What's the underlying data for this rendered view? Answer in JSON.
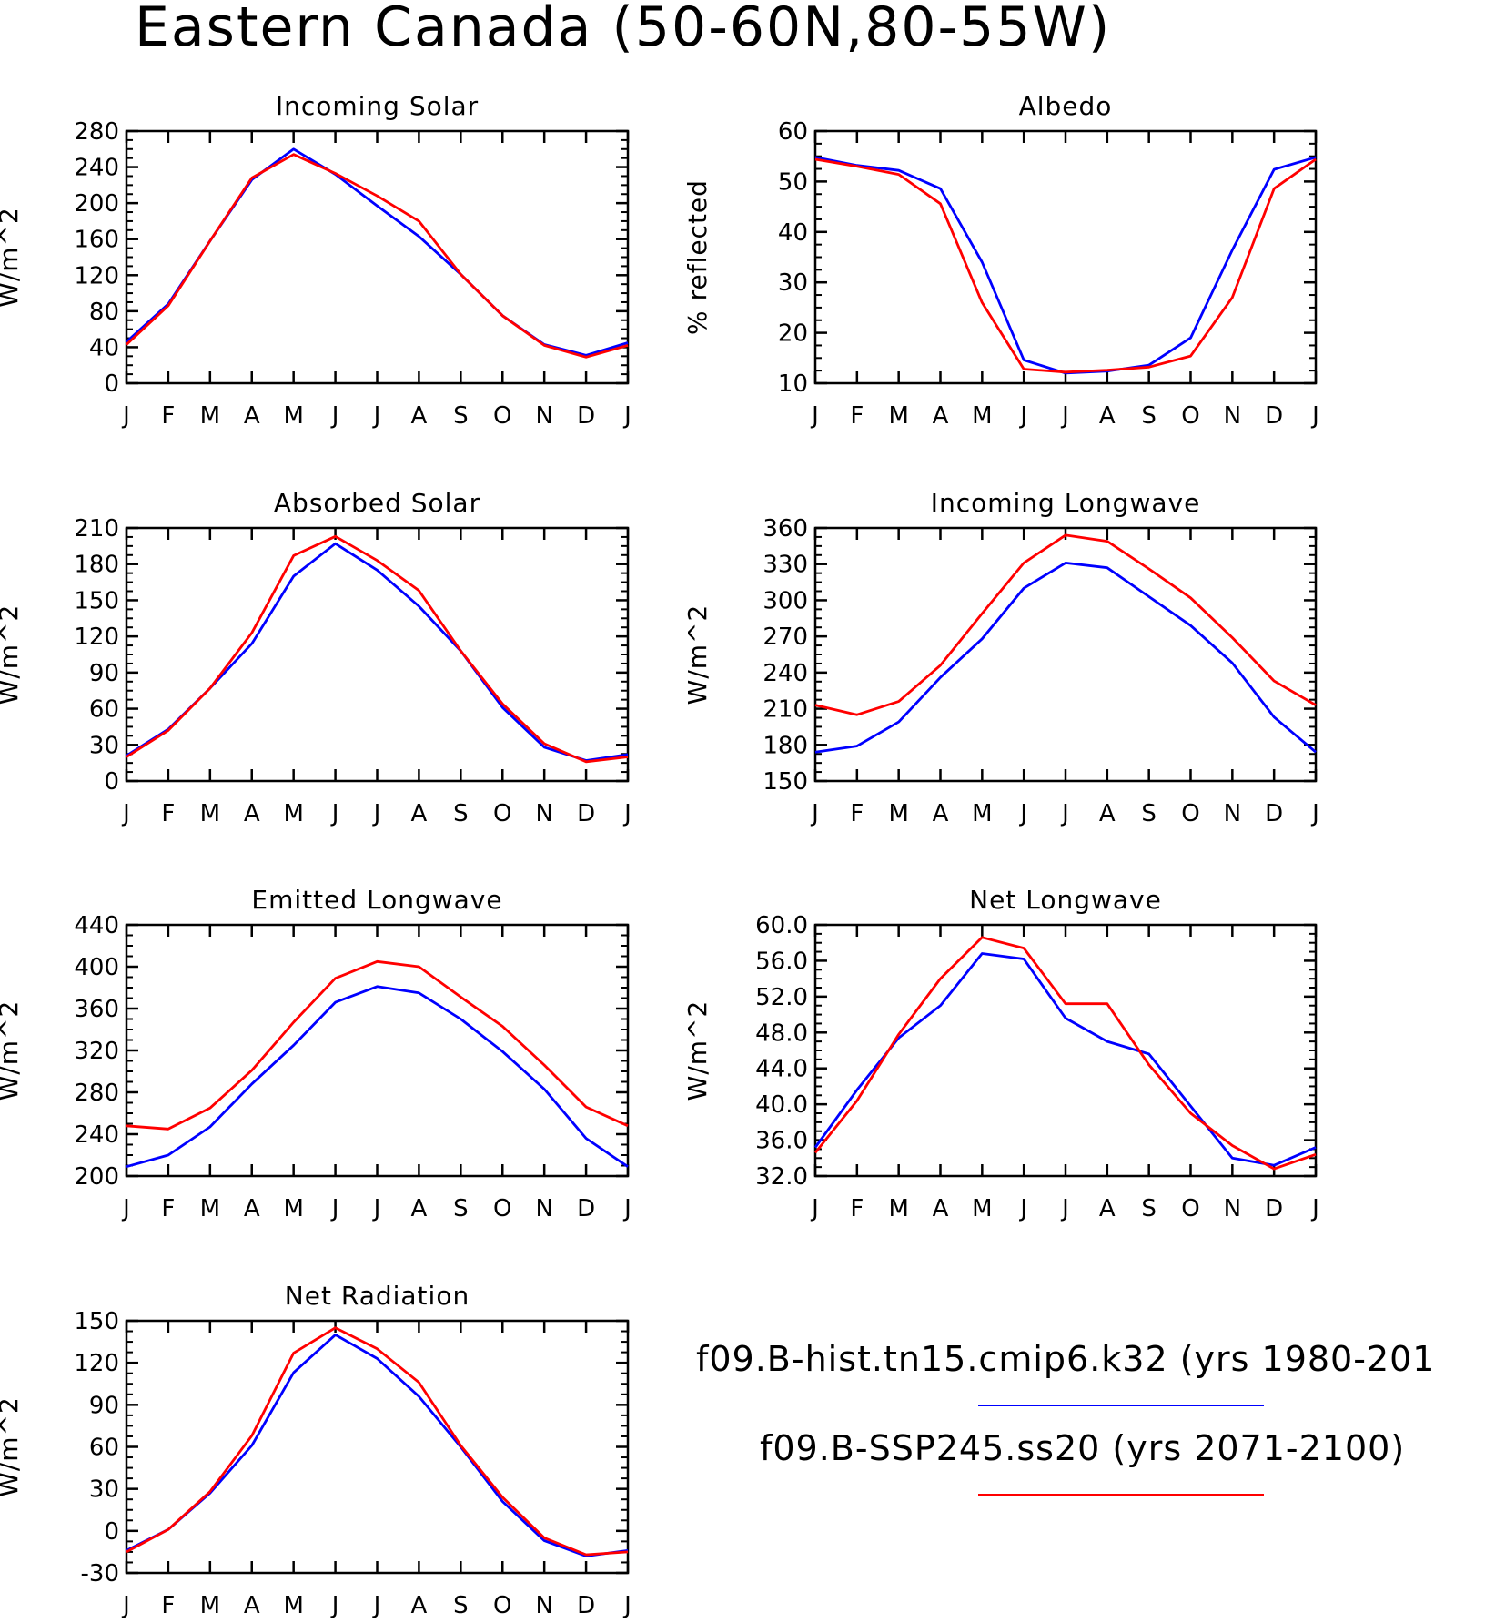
{
  "title": "Eastern Canada (50-60N,80-55W)",
  "month_labels": [
    "J",
    "F",
    "M",
    "A",
    "M",
    "J",
    "J",
    "A",
    "S",
    "O",
    "N",
    "D",
    "J"
  ],
  "colors": {
    "hist": "#0000ff",
    "ssp": "#ff0000",
    "axis": "#000000"
  },
  "legend": [
    {
      "text": "f09.B-hist.tn15.cmip6.k32 (yrs 1980-201",
      "color": "#0000ff"
    },
    {
      "text": "f09.B-SSP245.ss20 (yrs 2071-2100)",
      "color": "#ff0000"
    }
  ],
  "chart_data": [
    {
      "type": "line",
      "title": "Incoming Solar",
      "ylabel": "W/m^2",
      "xlabel": "",
      "categories": [
        "J",
        "F",
        "M",
        "A",
        "M",
        "J",
        "J",
        "A",
        "S",
        "O",
        "N",
        "D",
        "J"
      ],
      "ylim": [
        0,
        280
      ],
      "yticks": [
        "0",
        "40",
        "80",
        "120",
        "160",
        "200",
        "240",
        "280"
      ],
      "series": [
        {
          "name": "f09.B-hist.tn15.cmip6.k32 (yrs 1980-201",
          "color": "#0000ff",
          "values": [
            46,
            88,
            158,
            226,
            260,
            232,
            197,
            163,
            121,
            75,
            43,
            31,
            45
          ]
        },
        {
          "name": "f09.B-SSP245.ss20 (yrs 2071-2100)",
          "color": "#ff0000",
          "values": [
            43,
            86,
            158,
            228,
            254,
            233,
            208,
            180,
            121,
            75,
            42,
            29,
            42
          ]
        }
      ]
    },
    {
      "type": "line",
      "title": "Albedo",
      "ylabel": "% reflected",
      "xlabel": "",
      "categories": [
        "J",
        "F",
        "M",
        "A",
        "M",
        "J",
        "J",
        "A",
        "S",
        "O",
        "N",
        "D",
        "J"
      ],
      "ylim": [
        10,
        60
      ],
      "yticks": [
        "10",
        "20",
        "30",
        "40",
        "50",
        "60"
      ],
      "series": [
        {
          "name": "f09.B-hist.tn15.cmip6.k32 (yrs 1980-201",
          "color": "#0000ff",
          "values": [
            54.8,
            53.2,
            52.2,
            48.6,
            34.0,
            14.6,
            12.0,
            12.4,
            13.6,
            19.0,
            36.4,
            52.4,
            54.8
          ]
        },
        {
          "name": "f09.B-SSP245.ss20 (yrs 2071-2100)",
          "color": "#ff0000",
          "values": [
            54.4,
            53.0,
            51.4,
            45.6,
            26.0,
            12.8,
            12.2,
            12.6,
            13.2,
            15.4,
            27.0,
            48.6,
            54.4
          ]
        }
      ]
    },
    {
      "type": "line",
      "title": "Absorbed Solar",
      "ylabel": "W/m^2",
      "xlabel": "",
      "categories": [
        "J",
        "F",
        "M",
        "A",
        "M",
        "J",
        "J",
        "A",
        "S",
        "O",
        "N",
        "D",
        "J"
      ],
      "ylim": [
        0,
        210
      ],
      "yticks": [
        "0",
        "30",
        "60",
        "90",
        "120",
        "150",
        "180",
        "210"
      ],
      "series": [
        {
          "name": "f09.B-hist.tn15.cmip6.k32 (yrs 1980-201",
          "color": "#0000ff",
          "values": [
            21,
            43,
            77,
            114,
            170,
            197,
            175,
            145,
            108,
            61,
            28,
            17,
            22
          ]
        },
        {
          "name": "f09.B-SSP245.ss20 (yrs 2071-2100)",
          "color": "#ff0000",
          "values": [
            20,
            42,
            77,
            123,
            187,
            203,
            183,
            158,
            108,
            64,
            31,
            16,
            20
          ]
        }
      ]
    },
    {
      "type": "line",
      "title": "Incoming Longwave",
      "ylabel": "W/m^2",
      "xlabel": "",
      "categories": [
        "J",
        "F",
        "M",
        "A",
        "M",
        "J",
        "J",
        "A",
        "S",
        "O",
        "N",
        "D",
        "J"
      ],
      "ylim": [
        150,
        360
      ],
      "yticks": [
        "150",
        "180",
        "210",
        "240",
        "270",
        "300",
        "330",
        "360"
      ],
      "series": [
        {
          "name": "f09.B-hist.tn15.cmip6.k32 (yrs 1980-201",
          "color": "#0000ff",
          "values": [
            174,
            179,
            199,
            236,
            268,
            310,
            331,
            327,
            303,
            279,
            248,
            203,
            174
          ]
        },
        {
          "name": "f09.B-SSP245.ss20 (yrs 2071-2100)",
          "color": "#ff0000",
          "values": [
            213,
            205,
            216,
            246,
            289,
            331,
            354,
            349,
            326,
            302,
            269,
            233,
            213
          ]
        }
      ]
    },
    {
      "type": "line",
      "title": "Emitted Longwave",
      "ylabel": "W/m^2",
      "xlabel": "",
      "categories": [
        "J",
        "F",
        "M",
        "A",
        "M",
        "J",
        "J",
        "A",
        "S",
        "O",
        "N",
        "D",
        "J"
      ],
      "ylim": [
        200,
        440
      ],
      "yticks": [
        "200",
        "240",
        "280",
        "320",
        "360",
        "400",
        "440"
      ],
      "series": [
        {
          "name": "f09.B-hist.tn15.cmip6.k32 (yrs 1980-201",
          "color": "#0000ff",
          "values": [
            209,
            220,
            247,
            288,
            325,
            366,
            381,
            375,
            350,
            319,
            283,
            236,
            209
          ]
        },
        {
          "name": "f09.B-SSP245.ss20 (yrs 2071-2100)",
          "color": "#ff0000",
          "values": [
            248,
            245,
            265,
            301,
            347,
            389,
            405,
            400,
            371,
            343,
            306,
            266,
            248
          ]
        }
      ]
    },
    {
      "type": "line",
      "title": "Net Longwave",
      "ylabel": "W/m^2",
      "xlabel": "",
      "categories": [
        "J",
        "F",
        "M",
        "A",
        "M",
        "J",
        "J",
        "A",
        "S",
        "O",
        "N",
        "D",
        "J"
      ],
      "ylim": [
        32,
        60
      ],
      "yticks": [
        "32.0",
        "36.0",
        "40.0",
        "44.0",
        "48.0",
        "52.0",
        "56.0",
        "60.0"
      ],
      "series": [
        {
          "name": "f09.B-hist.tn15.cmip6.k32 (yrs 1980-201",
          "color": "#0000ff",
          "values": [
            35.2,
            41.6,
            47.4,
            51.0,
            56.8,
            56.2,
            49.6,
            47.0,
            45.6,
            39.8,
            34.0,
            33.2,
            35.2
          ]
        },
        {
          "name": "f09.B-SSP245.ss20 (yrs 2071-2100)",
          "color": "#ff0000",
          "values": [
            34.6,
            40.4,
            47.8,
            54.0,
            58.6,
            57.4,
            51.2,
            51.2,
            44.4,
            39.0,
            35.4,
            32.8,
            34.4
          ]
        }
      ]
    },
    {
      "type": "line",
      "title": "Net Radiation",
      "ylabel": "W/m^2",
      "xlabel": "",
      "categories": [
        "J",
        "F",
        "M",
        "A",
        "M",
        "J",
        "J",
        "A",
        "S",
        "O",
        "N",
        "D",
        "J"
      ],
      "ylim": [
        -30,
        150
      ],
      "yticks": [
        "-30",
        "0",
        "30",
        "60",
        "90",
        "120",
        "150"
      ],
      "series": [
        {
          "name": "f09.B-hist.tn15.cmip6.k32 (yrs 1980-201",
          "color": "#0000ff",
          "values": [
            -14,
            1,
            27,
            61,
            113,
            140,
            123,
            96,
            60,
            21,
            -7,
            -18,
            -14
          ]
        },
        {
          "name": "f09.B-SSP245.ss20 (yrs 2071-2100)",
          "color": "#ff0000",
          "values": [
            -15,
            1,
            28,
            68,
            127,
            145,
            130,
            106,
            61,
            24,
            -5,
            -17,
            -15
          ]
        }
      ]
    }
  ]
}
